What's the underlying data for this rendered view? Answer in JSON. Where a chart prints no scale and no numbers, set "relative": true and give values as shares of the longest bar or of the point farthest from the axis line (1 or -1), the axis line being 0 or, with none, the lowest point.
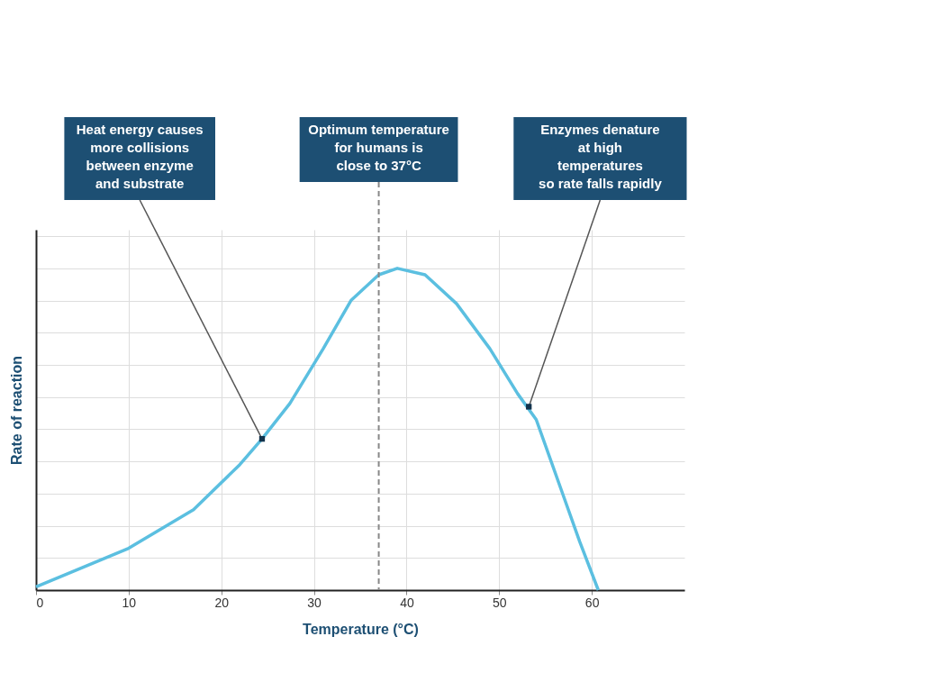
{
  "chart_data": {
    "type": "line",
    "relative": true,
    "xlabel": "Temperature (°C)",
    "ylabel": "Rate of reaction",
    "x": [
      0,
      10,
      17,
      22,
      24.4,
      27.4,
      31,
      34,
      37,
      39,
      42,
      45.4,
      49,
      52,
      54,
      56.6,
      58.7,
      60.7
    ],
    "series": [
      {
        "color": "#5bbfe0",
        "values": [
          0.01,
          0.13,
          0.25,
          0.39,
          0.47,
          0.58,
          0.75,
          0.9,
          0.98,
          1,
          0.98,
          0.89,
          0.75,
          0.61,
          0.53,
          0.32,
          0.15,
          0
        ]
      }
    ],
    "xlim": [
      0,
      70
    ],
    "xticks": [
      0,
      10,
      20,
      30,
      40,
      50,
      60
    ],
    "grid": true,
    "line_style": "solid",
    "marker": "none",
    "ref_lines": [
      {
        "axis": "x",
        "value": 37,
        "label": "Optimum temperature\nfor humans is\nclose to 37°C",
        "color": "#888888",
        "line_style": "dashed"
      }
    ],
    "annotations": [
      {
        "text": "Heat energy causes\nmore collisions\nbetween enzyme\nand substrate",
        "x": 24.4,
        "y": 0.47
      },
      {
        "text": "Enzymes denature\nat high\ntemperatures\nso rate falls rapidly",
        "x": 53.2,
        "y": 0.57
      }
    ]
  }
}
